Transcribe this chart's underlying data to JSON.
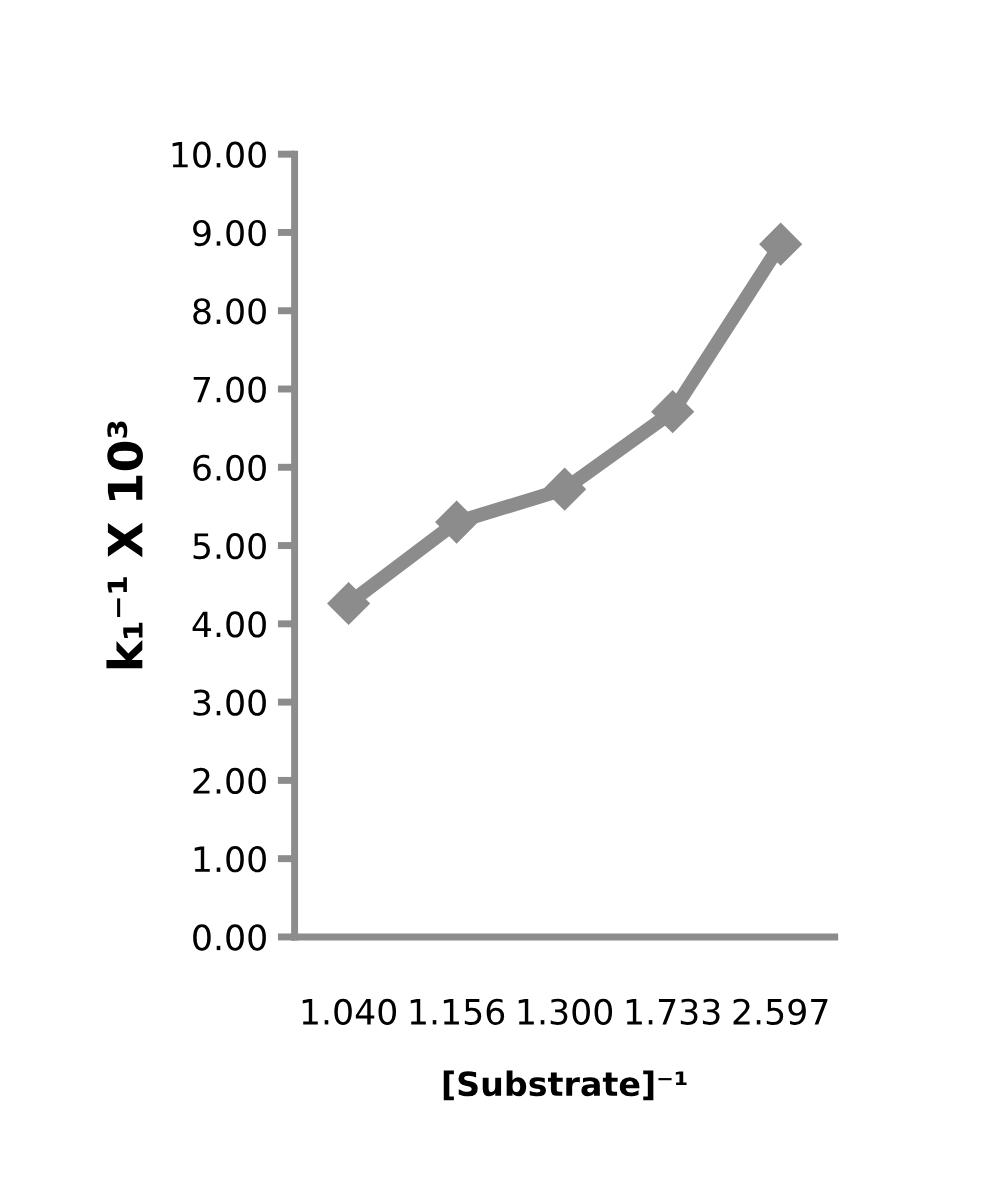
{
  "chart_data": {
    "type": "line",
    "xlabel": "[Substrate]⁻¹",
    "ylabel": "k₁⁻¹ X 10³",
    "categories": [
      "1.040",
      "1.156",
      "1.300",
      "1.733",
      "2.597"
    ],
    "series": [
      {
        "color": "#8c8c8c",
        "values": [
          4.26,
          5.3,
          5.72,
          6.71,
          8.85
        ]
      }
    ],
    "ylim": [
      0,
      10
    ],
    "yticks": [
      {
        "value": 0,
        "label": "0.00"
      },
      {
        "value": 1,
        "label": "1.00"
      },
      {
        "value": 2,
        "label": "2.00"
      },
      {
        "value": 3,
        "label": "3.00"
      },
      {
        "value": 4,
        "label": "4.00"
      },
      {
        "value": 5,
        "label": "5.00"
      },
      {
        "value": 6,
        "label": "6.00"
      },
      {
        "value": 7,
        "label": "7.00"
      },
      {
        "value": 8,
        "label": "8.00"
      },
      {
        "value": 9,
        "label": "9.00"
      },
      {
        "value": 10,
        "label": "10.00"
      }
    ],
    "marker": "diamond",
    "line_style": "solid",
    "grid": false,
    "legend": false
  }
}
